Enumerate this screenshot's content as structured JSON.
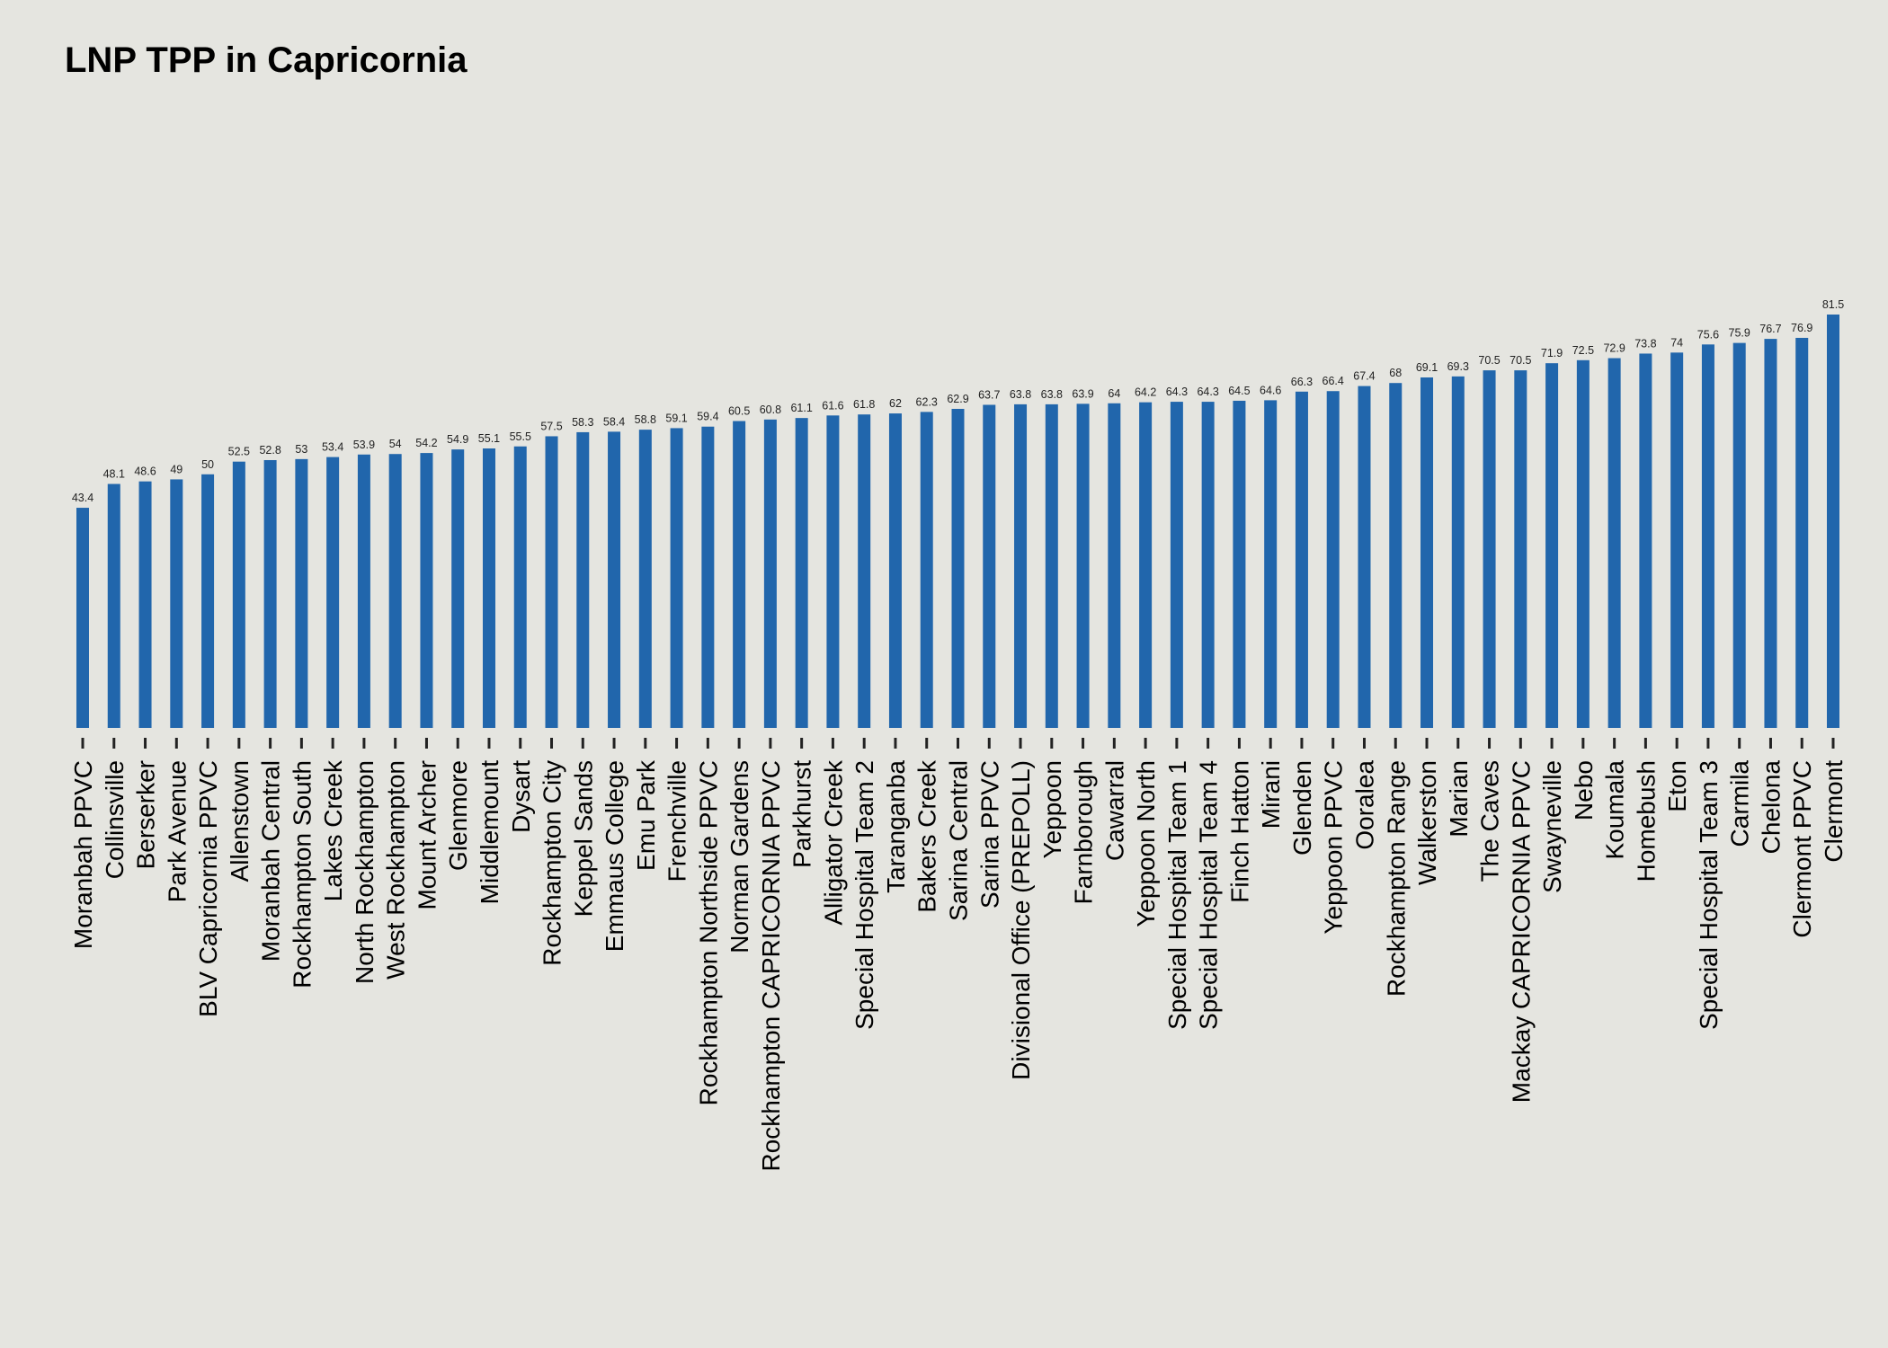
{
  "chart_data": {
    "type": "bar",
    "title": "LNP TPP in Capricornia",
    "xlabel": "",
    "ylabel": "",
    "ylim": [
      0,
      85
    ],
    "grid": false,
    "bar_color": "#2166ac",
    "background": "#e5e5e0",
    "categories": [
      "Moranbah PPVC",
      "Collinsville",
      "Berserker",
      "Park Avenue",
      "BLV Capricornia PPVC",
      "Allenstown",
      "Moranbah Central",
      "Rockhampton South",
      "Lakes Creek",
      "North Rockhampton",
      "West Rockhampton",
      "Mount Archer",
      "Glenmore",
      "Middlemount",
      "Dysart",
      "Rockhampton City",
      "Keppel Sands",
      "Emmaus College",
      "Emu Park",
      "Frenchville",
      "Rockhampton Northside PPVC",
      "Norman Gardens",
      "Rockhampton CAPRICORNIA PPVC",
      "Parkhurst",
      "Alligator Creek",
      "Special Hospital Team 2",
      "Taranganba",
      "Bakers Creek",
      "Sarina Central",
      "Sarina PPVC",
      "Divisional Office (PREPOLL)",
      "Yeppoon",
      "Farnborough",
      "Cawarral",
      "Yeppoon North",
      "Special Hospital Team 1",
      "Special Hospital Team 4",
      "Finch Hatton",
      "Mirani",
      "Glenden",
      "Yeppoon PPVC",
      "Ooralea",
      "Rockhampton Range",
      "Walkerston",
      "Marian",
      "The Caves",
      "Mackay CAPRICORNIA PPVC",
      "Swayneville",
      "Nebo",
      "Koumala",
      "Homebush",
      "Eton",
      "Special Hospital Team 3",
      "Carmila",
      "Chelona",
      "Clermont PPVC",
      "Clermont"
    ],
    "values": [
      43.4,
      48.1,
      48.6,
      49,
      50,
      52.5,
      52.8,
      53,
      53.4,
      53.9,
      54,
      54.2,
      54.9,
      55.1,
      55.5,
      57.5,
      58.3,
      58.4,
      58.8,
      59.1,
      59.4,
      60.5,
      60.8,
      61.1,
      61.6,
      61.8,
      62,
      62.3,
      62.9,
      63.7,
      63.8,
      63.8,
      63.9,
      64,
      64.2,
      64.3,
      64.3,
      64.5,
      64.6,
      66.3,
      66.4,
      67.4,
      68,
      69.1,
      69.3,
      70.5,
      70.5,
      71.9,
      72.5,
      72.9,
      73.8,
      74,
      75.6,
      75.9,
      76.7,
      76.9,
      81.5
    ],
    "value_labels": [
      "43.4",
      "48.1",
      "48.6",
      "49",
      "50",
      "52.5",
      "52.8",
      "53",
      "53.4",
      "53.9",
      "54",
      "54.2",
      "54.9",
      "55.1",
      "55.5",
      "57.5",
      "58.3",
      "58.4",
      "58.8",
      "59.1",
      "59.4",
      "60.5",
      "60.8",
      "61.1",
      "61.6",
      "61.8",
      "62",
      "62.3",
      "62.9",
      "63.7",
      "63.8",
      "63.8",
      "63.9",
      "64",
      "64.2",
      "64.3",
      "64.3",
      "64.5",
      "64.6",
      "66.3",
      "66.4",
      "67.4",
      "68",
      "69.1",
      "69.3",
      "70.5",
      "70.5",
      "71.9",
      "72.5",
      "72.9",
      "73.8",
      "74",
      "75.6",
      "75.9",
      "76.7",
      "76.9",
      "81.5"
    ]
  }
}
